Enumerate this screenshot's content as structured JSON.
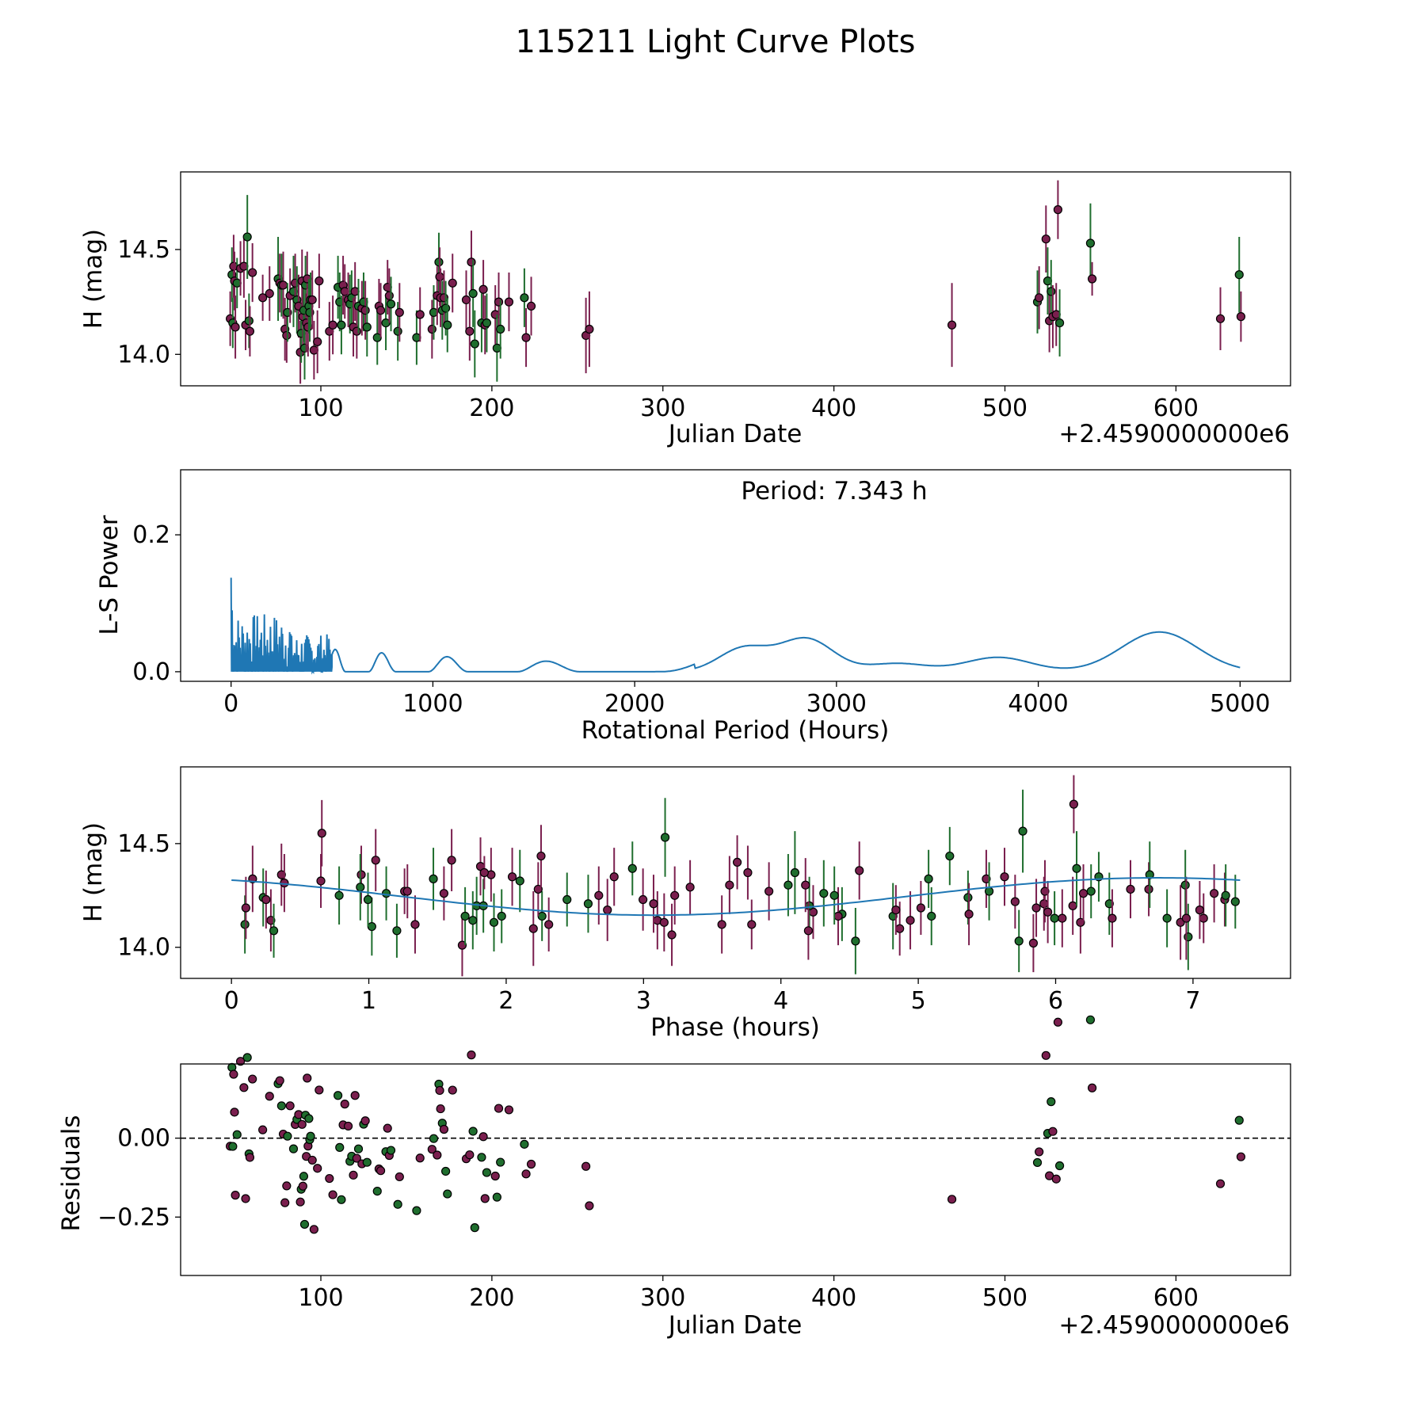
{
  "chart_data": {
    "title": "115211 Light Curve Plots",
    "colors": {
      "band_1": "#7a1f4e",
      "band_2": "#1f6e2e",
      "model_line": "#1f77b4",
      "marker_edge": "#000000"
    },
    "panels": [
      {
        "id": "lightcurve",
        "type": "scatter",
        "xlabel": "Julian Date",
        "ylabel": "H (mag)",
        "x_offset_label": "+2.4590000000e6",
        "xlim": [
          18,
          667
        ],
        "ylim": [
          13.85,
          14.87
        ],
        "xticks": [
          100,
          200,
          300,
          400,
          500,
          600
        ],
        "xtick_labels": [
          "100",
          "200",
          "300",
          "400",
          "500",
          "600"
        ],
        "yticks": [
          14.0,
          14.5
        ],
        "ytick_labels": [
          "14.0",
          "14.5"
        ]
      },
      {
        "id": "periodogram",
        "type": "line",
        "xlabel": "Rotational Period (Hours)",
        "ylabel": "L-S Power",
        "annotation": "Period: 7.343 h",
        "peak_period_h": 7.343,
        "xlim": [
          -250,
          5250
        ],
        "ylim": [
          -0.014,
          0.295
        ],
        "xticks": [
          0,
          1000,
          2000,
          3000,
          4000,
          5000
        ],
        "xtick_labels": [
          "0",
          "1000",
          "2000",
          "3000",
          "4000",
          "5000"
        ],
        "yticks": [
          0.0,
          0.2
        ],
        "ytick_labels": [
          "0.0",
          "0.2"
        ],
        "curve_peaks": [
          [
            2540,
            0.034
          ],
          [
            2850,
            0.048
          ],
          [
            3300,
            0.012
          ],
          [
            3800,
            0.021
          ],
          [
            4600,
            0.058
          ]
        ]
      },
      {
        "id": "phased",
        "type": "scatter+line",
        "xlabel": "Phase (hours)",
        "ylabel": "H (mag)",
        "period_h": 7.343,
        "model_mean_mag": 14.245,
        "model_amplitude_mag": 0.09,
        "xlim": [
          -0.37,
          7.71
        ],
        "ylim": [
          13.85,
          14.87
        ],
        "xticks": [
          0,
          1,
          2,
          3,
          4,
          5,
          6,
          7
        ],
        "xtick_labels": [
          "0",
          "1",
          "2",
          "3",
          "4",
          "5",
          "6",
          "7"
        ],
        "yticks": [
          14.0,
          14.5
        ],
        "ytick_labels": [
          "14.0",
          "14.5"
        ]
      },
      {
        "id": "residuals",
        "type": "scatter",
        "xlabel": "Julian Date",
        "ylabel": "Residuals",
        "x_offset_label": "+2.4590000000e6",
        "zero_line": 0.0,
        "xlim": [
          18,
          667
        ],
        "ylim": [
          -0.435,
          0.235
        ],
        "xticks": [
          100,
          200,
          300,
          400,
          500,
          600
        ],
        "xtick_labels": [
          "100",
          "200",
          "300",
          "400",
          "500",
          "600"
        ],
        "yticks": [
          0.0,
          -0.25
        ],
        "ytick_labels": [
          "0.00",
          "−0.25"
        ]
      }
    ],
    "observations": [
      {
        "jd": 47,
        "mag": 14.17,
        "err": 0.13,
        "band": 1
      },
      {
        "jd": 48,
        "mag": 14.38,
        "err": 0.13,
        "band": 2
      },
      {
        "jd": 48.5,
        "mag": 14.15,
        "err": 0.12,
        "band": 2
      },
      {
        "jd": 49,
        "mag": 14.42,
        "err": 0.15,
        "band": 1
      },
      {
        "jd": 49.5,
        "mag": 14.35,
        "err": 0.14,
        "band": 1
      },
      {
        "jd": 50,
        "mag": 14.13,
        "err": 0.15,
        "band": 1
      },
      {
        "jd": 51,
        "mag": 14.34,
        "err": 0.12,
        "band": 2
      },
      {
        "jd": 53,
        "mag": 14.41,
        "err": 0.13,
        "band": 1
      },
      {
        "jd": 55,
        "mag": 14.42,
        "err": 0.15,
        "band": 1
      },
      {
        "jd": 56,
        "mag": 14.14,
        "err": 0.12,
        "band": 1
      },
      {
        "jd": 57,
        "mag": 14.56,
        "err": 0.2,
        "band": 2
      },
      {
        "jd": 58,
        "mag": 14.16,
        "err": 0.13,
        "band": 2
      },
      {
        "jd": 58.5,
        "mag": 14.11,
        "err": 0.12,
        "band": 1
      },
      {
        "jd": 60,
        "mag": 14.39,
        "err": 0.14,
        "band": 1
      },
      {
        "jd": 66,
        "mag": 14.27,
        "err": 0.11,
        "band": 1
      },
      {
        "jd": 70,
        "mag": 14.29,
        "err": 0.13,
        "band": 1
      },
      {
        "jd": 75,
        "mag": 14.36,
        "err": 0.2,
        "band": 2
      },
      {
        "jd": 76,
        "mag": 14.34,
        "err": 0.14,
        "band": 1
      },
      {
        "jd": 77,
        "mag": 14.33,
        "err": 0.15,
        "band": 2
      },
      {
        "jd": 78,
        "mag": 14.33,
        "err": 0.16,
        "band": 1
      },
      {
        "jd": 79,
        "mag": 14.12,
        "err": 0.15,
        "band": 1
      },
      {
        "jd": 80,
        "mag": 14.09,
        "err": 0.13,
        "band": 1
      },
      {
        "jd": 80.5,
        "mag": 14.2,
        "err": 0.14,
        "band": 2
      },
      {
        "jd": 82,
        "mag": 14.28,
        "err": 0.13,
        "band": 1
      },
      {
        "jd": 84,
        "mag": 14.3,
        "err": 0.17,
        "band": 2
      },
      {
        "jd": 85,
        "mag": 14.34,
        "err": 0.14,
        "band": 1
      },
      {
        "jd": 86,
        "mag": 14.26,
        "err": 0.16,
        "band": 2
      },
      {
        "jd": 87,
        "mag": 14.23,
        "err": 0.15,
        "band": 1
      },
      {
        "jd": 88,
        "mag": 14.01,
        "err": 0.15,
        "band": 1
      },
      {
        "jd": 88.5,
        "mag": 14.1,
        "err": 0.14,
        "band": 2
      },
      {
        "jd": 89,
        "mag": 14.35,
        "err": 0.15,
        "band": 1
      },
      {
        "jd": 89.5,
        "mag": 14.18,
        "err": 0.14,
        "band": 1
      },
      {
        "jd": 90,
        "mag": 14.21,
        "err": 0.15,
        "band": 2
      },
      {
        "jd": 90.5,
        "mag": 14.03,
        "err": 0.15,
        "band": 2
      },
      {
        "jd": 91,
        "mag": 14.33,
        "err": 0.14,
        "band": 2
      },
      {
        "jd": 91.5,
        "mag": 14.15,
        "err": 0.14,
        "band": 1
      },
      {
        "jd": 92,
        "mag": 14.36,
        "err": 0.13,
        "band": 1
      },
      {
        "jd": 92.5,
        "mag": 14.13,
        "err": 0.14,
        "band": 1
      },
      {
        "jd": 93,
        "mag": 14.23,
        "err": 0.13,
        "band": 2
      },
      {
        "jd": 93.5,
        "mag": 14.2,
        "err": 0.14,
        "band": 2
      },
      {
        "jd": 94,
        "mag": 14.26,
        "err": 0.13,
        "band": 2
      },
      {
        "jd": 95,
        "mag": 14.26,
        "err": 0.14,
        "band": 1
      },
      {
        "jd": 96,
        "mag": 14.02,
        "err": 0.14,
        "band": 1
      },
      {
        "jd": 98,
        "mag": 14.06,
        "err": 0.15,
        "band": 1
      },
      {
        "jd": 99,
        "mag": 14.35,
        "err": 0.13,
        "band": 1
      },
      {
        "jd": 105,
        "mag": 14.11,
        "err": 0.14,
        "band": 1
      },
      {
        "jd": 107,
        "mag": 14.14,
        "err": 0.14,
        "band": 1
      },
      {
        "jd": 110,
        "mag": 14.32,
        "err": 0.15,
        "band": 2
      },
      {
        "jd": 111,
        "mag": 14.25,
        "err": 0.14,
        "band": 2
      },
      {
        "jd": 112,
        "mag": 14.14,
        "err": 0.14,
        "band": 2
      },
      {
        "jd": 113,
        "mag": 14.33,
        "err": 0.14,
        "band": 1
      },
      {
        "jd": 114,
        "mag": 14.3,
        "err": 0.13,
        "band": 1
      },
      {
        "jd": 116,
        "mag": 14.26,
        "err": 0.13,
        "band": 1
      },
      {
        "jd": 117,
        "mag": 14.24,
        "err": 0.14,
        "band": 2
      },
      {
        "jd": 118,
        "mag": 14.27,
        "err": 0.13,
        "band": 2
      },
      {
        "jd": 119,
        "mag": 14.13,
        "err": 0.14,
        "band": 1
      },
      {
        "jd": 120,
        "mag": 14.3,
        "err": 0.14,
        "band": 1
      },
      {
        "jd": 121,
        "mag": 14.11,
        "err": 0.13,
        "band": 1
      },
      {
        "jd": 122,
        "mag": 14.23,
        "err": 0.13,
        "band": 2
      },
      {
        "jd": 124,
        "mag": 14.22,
        "err": 0.13,
        "band": 1
      },
      {
        "jd": 125,
        "mag": 14.25,
        "err": 0.14,
        "band": 2
      },
      {
        "jd": 126,
        "mag": 14.21,
        "err": 0.14,
        "band": 1
      },
      {
        "jd": 127,
        "mag": 14.13,
        "err": 0.14,
        "band": 2
      },
      {
        "jd": 133,
        "mag": 14.08,
        "err": 0.13,
        "band": 2
      },
      {
        "jd": 134,
        "mag": 14.23,
        "err": 0.13,
        "band": 1
      },
      {
        "jd": 135,
        "mag": 14.21,
        "err": 0.13,
        "band": 1
      },
      {
        "jd": 138,
        "mag": 14.15,
        "err": 0.13,
        "band": 2
      },
      {
        "jd": 139,
        "mag": 14.32,
        "err": 0.13,
        "band": 1
      },
      {
        "jd": 140,
        "mag": 14.28,
        "err": 0.13,
        "band": 1
      },
      {
        "jd": 141,
        "mag": 14.24,
        "err": 0.13,
        "band": 2
      },
      {
        "jd": 145,
        "mag": 14.11,
        "err": 0.14,
        "band": 2
      },
      {
        "jd": 146,
        "mag": 14.2,
        "err": 0.14,
        "band": 1
      },
      {
        "jd": 156,
        "mag": 14.08,
        "err": 0.13,
        "band": 2
      },
      {
        "jd": 158,
        "mag": 14.19,
        "err": 0.13,
        "band": 1
      },
      {
        "jd": 165,
        "mag": 14.12,
        "err": 0.14,
        "band": 1
      },
      {
        "jd": 166,
        "mag": 14.2,
        "err": 0.13,
        "band": 2
      },
      {
        "jd": 168,
        "mag": 14.28,
        "err": 0.14,
        "band": 1
      },
      {
        "jd": 169,
        "mag": 14.44,
        "err": 0.14,
        "band": 2
      },
      {
        "jd": 169.5,
        "mag": 14.37,
        "err": 0.14,
        "band": 1
      },
      {
        "jd": 170,
        "mag": 14.27,
        "err": 0.14,
        "band": 1
      },
      {
        "jd": 171,
        "mag": 14.21,
        "err": 0.14,
        "band": 2
      },
      {
        "jd": 172,
        "mag": 14.27,
        "err": 0.13,
        "band": 1
      },
      {
        "jd": 173,
        "mag": 14.22,
        "err": 0.13,
        "band": 2
      },
      {
        "jd": 174,
        "mag": 14.14,
        "err": 0.13,
        "band": 2
      },
      {
        "jd": 177,
        "mag": 14.34,
        "err": 0.14,
        "band": 1
      },
      {
        "jd": 185,
        "mag": 14.26,
        "err": 0.14,
        "band": 1
      },
      {
        "jd": 187,
        "mag": 14.11,
        "err": 0.14,
        "band": 1
      },
      {
        "jd": 188,
        "mag": 14.44,
        "err": 0.15,
        "band": 1
      },
      {
        "jd": 189,
        "mag": 14.29,
        "err": 0.16,
        "band": 2
      },
      {
        "jd": 190,
        "mag": 14.05,
        "err": 0.16,
        "band": 2
      },
      {
        "jd": 194,
        "mag": 14.15,
        "err": 0.14,
        "band": 2
      },
      {
        "jd": 195,
        "mag": 14.31,
        "err": 0.14,
        "band": 1
      },
      {
        "jd": 196,
        "mag": 14.14,
        "err": 0.14,
        "band": 1
      },
      {
        "jd": 197,
        "mag": 14.15,
        "err": 0.14,
        "band": 2
      },
      {
        "jd": 202,
        "mag": 14.19,
        "err": 0.14,
        "band": 1
      },
      {
        "jd": 203,
        "mag": 14.03,
        "err": 0.16,
        "band": 2
      },
      {
        "jd": 204,
        "mag": 14.25,
        "err": 0.14,
        "band": 1
      },
      {
        "jd": 205,
        "mag": 14.12,
        "err": 0.14,
        "band": 2
      },
      {
        "jd": 210,
        "mag": 14.25,
        "err": 0.14,
        "band": 1
      },
      {
        "jd": 219,
        "mag": 14.27,
        "err": 0.14,
        "band": 2
      },
      {
        "jd": 220,
        "mag": 14.08,
        "err": 0.14,
        "band": 1
      },
      {
        "jd": 223,
        "mag": 14.23,
        "err": 0.14,
        "band": 1
      },
      {
        "jd": 255,
        "mag": 14.09,
        "err": 0.18,
        "band": 1
      },
      {
        "jd": 257,
        "mag": 14.12,
        "err": 0.18,
        "band": 1
      },
      {
        "jd": 469,
        "mag": 14.14,
        "err": 0.2,
        "band": 1
      },
      {
        "jd": 519,
        "mag": 14.25,
        "err": 0.15,
        "band": 2
      },
      {
        "jd": 520,
        "mag": 14.27,
        "err": 0.15,
        "band": 1
      },
      {
        "jd": 524,
        "mag": 14.55,
        "err": 0.16,
        "band": 1
      },
      {
        "jd": 525,
        "mag": 14.35,
        "err": 0.16,
        "band": 2
      },
      {
        "jd": 526,
        "mag": 14.16,
        "err": 0.15,
        "band": 1
      },
      {
        "jd": 527,
        "mag": 14.3,
        "err": 0.15,
        "band": 2
      },
      {
        "jd": 528,
        "mag": 14.18,
        "err": 0.15,
        "band": 1
      },
      {
        "jd": 530,
        "mag": 14.19,
        "err": 0.15,
        "band": 1
      },
      {
        "jd": 531,
        "mag": 14.69,
        "err": 0.14,
        "band": 1
      },
      {
        "jd": 532,
        "mag": 14.15,
        "err": 0.16,
        "band": 2
      },
      {
        "jd": 550,
        "mag": 14.53,
        "err": 0.19,
        "band": 2
      },
      {
        "jd": 551,
        "mag": 14.36,
        "err": 0.08,
        "band": 1
      },
      {
        "jd": 626,
        "mag": 14.17,
        "err": 0.15,
        "band": 1
      },
      {
        "jd": 637,
        "mag": 14.38,
        "err": 0.18,
        "band": 2
      },
      {
        "jd": 638,
        "mag": 14.18,
        "err": 0.12,
        "band": 1
      }
    ]
  }
}
